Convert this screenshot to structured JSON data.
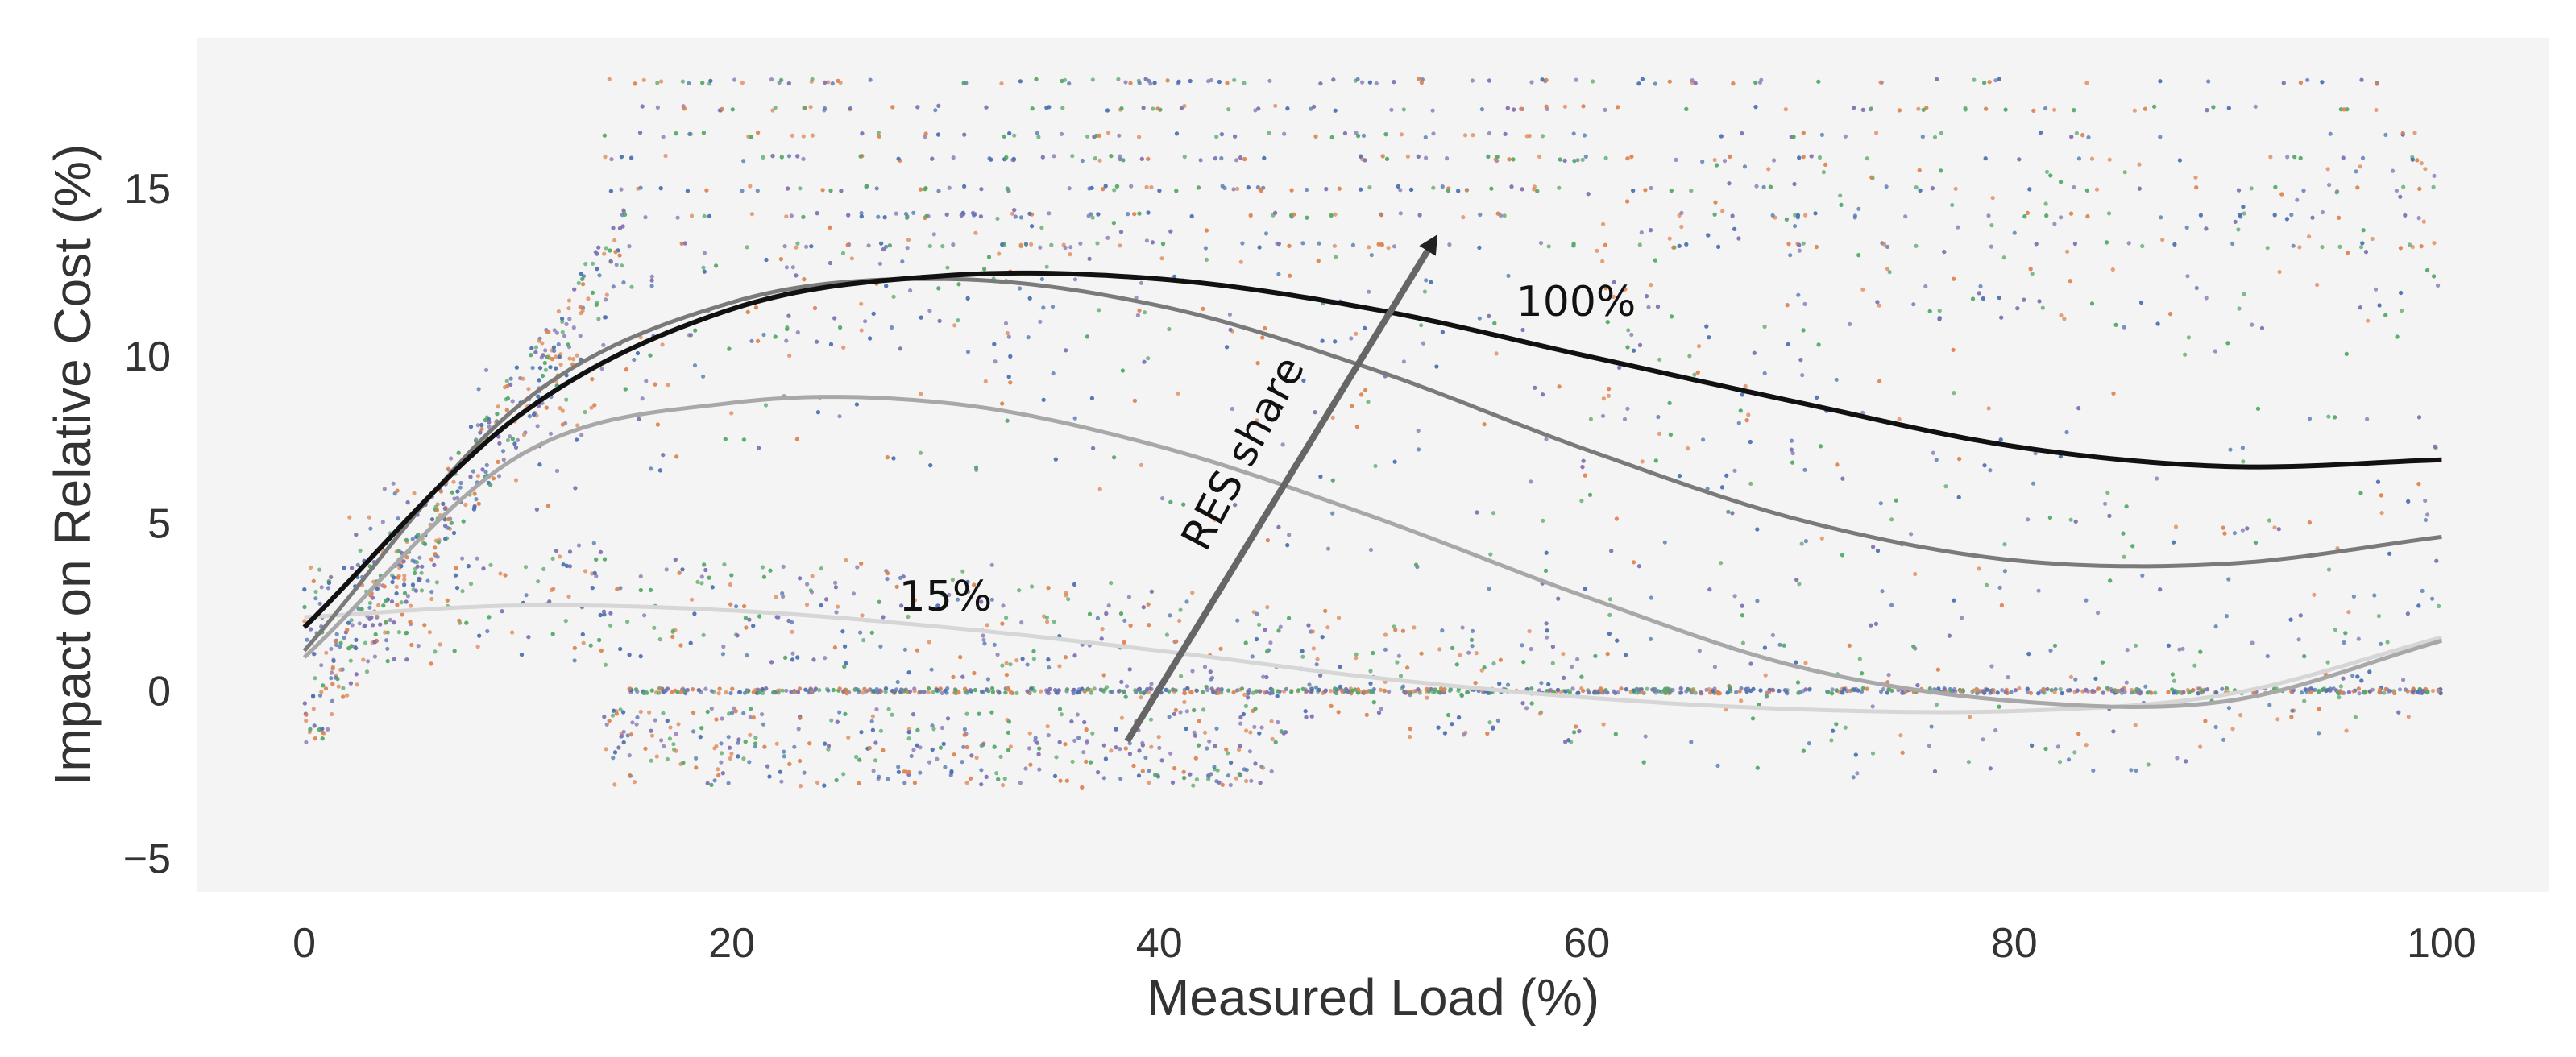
{
  "chart_data": {
    "type": "scatter",
    "xlabel": "Measured Load (%)",
    "ylabel": "Impact on Relative Cost (%)",
    "xlim": [
      -5,
      105
    ],
    "ylim": [
      -6,
      19.5
    ],
    "x_ticks": [
      0,
      20,
      40,
      60,
      80,
      100
    ],
    "y_ticks": [
      -5,
      0,
      5,
      10,
      15
    ],
    "grid": false,
    "background": "#f4f4f4",
    "scatter_colors": [
      "#4c72b0",
      "#dd8452",
      "#55a868",
      "#8172b3"
    ],
    "curves": [
      {
        "color": "#d6d6d6",
        "x": [
          0,
          10,
          20,
          30,
          40,
          50,
          60,
          70,
          80,
          90,
          100
        ],
        "y": [
          2.2,
          2.55,
          2.4,
          1.9,
          1.2,
          0.4,
          -0.2,
          -0.55,
          -0.6,
          -0.1,
          1.6
        ]
      },
      {
        "color": "#a8a8a8",
        "x": [
          0,
          10,
          20,
          30,
          40,
          50,
          60,
          70,
          80,
          90,
          100
        ],
        "y": [
          1.0,
          7.0,
          8.6,
          8.6,
          7.3,
          5.2,
          2.8,
          0.7,
          -0.3,
          -0.3,
          1.5
        ]
      },
      {
        "color": "#7a7a7a",
        "x": [
          0,
          10,
          20,
          30,
          40,
          50,
          60,
          70,
          80,
          90,
          100
        ],
        "y": [
          1.2,
          8.5,
          11.6,
          12.3,
          11.5,
          9.6,
          7.2,
          5.1,
          3.9,
          3.8,
          4.6
        ]
      },
      {
        "color": "#111111",
        "x": [
          0,
          10,
          20,
          30,
          40,
          50,
          60,
          70,
          80,
          90,
          100
        ],
        "y": [
          1.9,
          8.2,
          11.4,
          12.4,
          12.3,
          11.4,
          10.0,
          8.6,
          7.3,
          6.7,
          6.9
        ]
      }
    ],
    "annotations": [
      {
        "text": "100%",
        "x": 59.5,
        "y": 11.2
      },
      {
        "text": "15%",
        "x": 30,
        "y": 2.4
      },
      {
        "text": "RES share",
        "x": 44.5,
        "y": 6.9,
        "rotate": -62
      }
    ],
    "arrow": {
      "from": [
        38.5,
        -1.5
      ],
      "to": [
        52.8,
        13.4
      ],
      "color": "#666666"
    }
  }
}
